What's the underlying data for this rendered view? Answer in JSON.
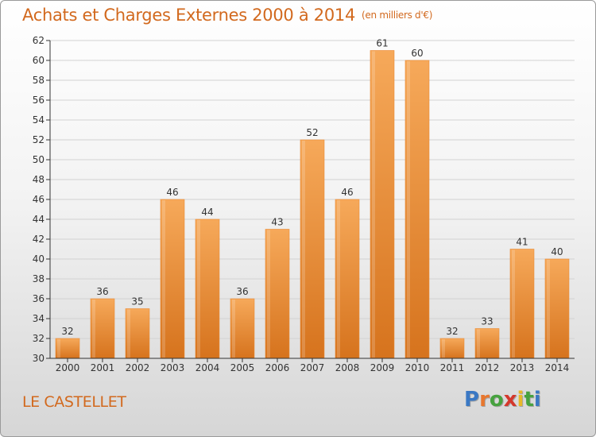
{
  "title": "Achats et Charges Externes 2000 à 2014",
  "subtitle": "(en milliers d'€)",
  "city": "LE CASTELLET",
  "logo": {
    "letters": [
      "P",
      "r",
      "o",
      "x",
      "i",
      "t",
      "i"
    ],
    "colors": [
      "#3a78c4",
      "#e8772e",
      "#47a23f",
      "#d4382c",
      "#e8b828",
      "#47a23f",
      "#3a78c4"
    ]
  },
  "colors": {
    "bar_top": "#f6a95a",
    "bar_bottom": "#d6731d",
    "text": "#d2691e",
    "axis": "#333333"
  },
  "chart_data": {
    "type": "bar",
    "categories": [
      "2000",
      "2001",
      "2002",
      "2003",
      "2004",
      "2005",
      "2006",
      "2007",
      "2008",
      "2009",
      "2010",
      "2011",
      "2012",
      "2013",
      "2014"
    ],
    "values": [
      32,
      36,
      35,
      46,
      44,
      36,
      43,
      52,
      46,
      61,
      60,
      32,
      33,
      41,
      40
    ],
    "ylim": [
      30,
      62
    ],
    "yticks": [
      30,
      32,
      34,
      36,
      38,
      40,
      42,
      44,
      46,
      48,
      50,
      52,
      54,
      56,
      58,
      60,
      62
    ],
    "grid": true,
    "data_labels": true
  }
}
